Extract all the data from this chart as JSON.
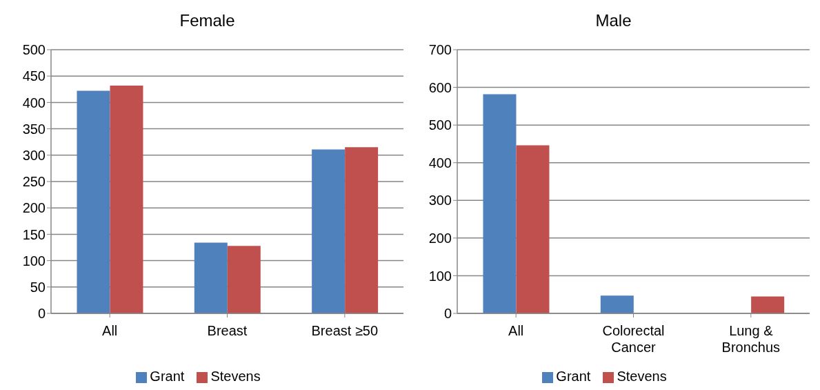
{
  "chart_data": [
    {
      "type": "bar",
      "title": "Female",
      "categories": [
        "All",
        "Breast",
        "Breast ≥50"
      ],
      "series": [
        {
          "name": "Grant",
          "color": "#4f81bd",
          "values": [
            422,
            134,
            311
          ]
        },
        {
          "name": "Stevens",
          "color": "#c0504d",
          "values": [
            432,
            128,
            315
          ]
        }
      ],
      "ylim": [
        0,
        500
      ],
      "yticks": [
        0,
        50,
        100,
        150,
        200,
        250,
        300,
        350,
        400,
        450,
        500
      ],
      "grid": "y",
      "legend": "bottom"
    },
    {
      "type": "bar",
      "title": "Male",
      "categories": [
        "All",
        "Colorectal Cancer",
        "Lung & Bronchus"
      ],
      "series": [
        {
          "name": "Grant",
          "color": "#4f81bd",
          "values": [
            582,
            47,
            null
          ]
        },
        {
          "name": "Stevens",
          "color": "#c0504d",
          "values": [
            446,
            null,
            45
          ]
        }
      ],
      "ylim": [
        0,
        700
      ],
      "yticks": [
        0,
        100,
        200,
        300,
        400,
        500,
        600,
        700
      ],
      "grid": "y",
      "legend": "bottom"
    }
  ]
}
